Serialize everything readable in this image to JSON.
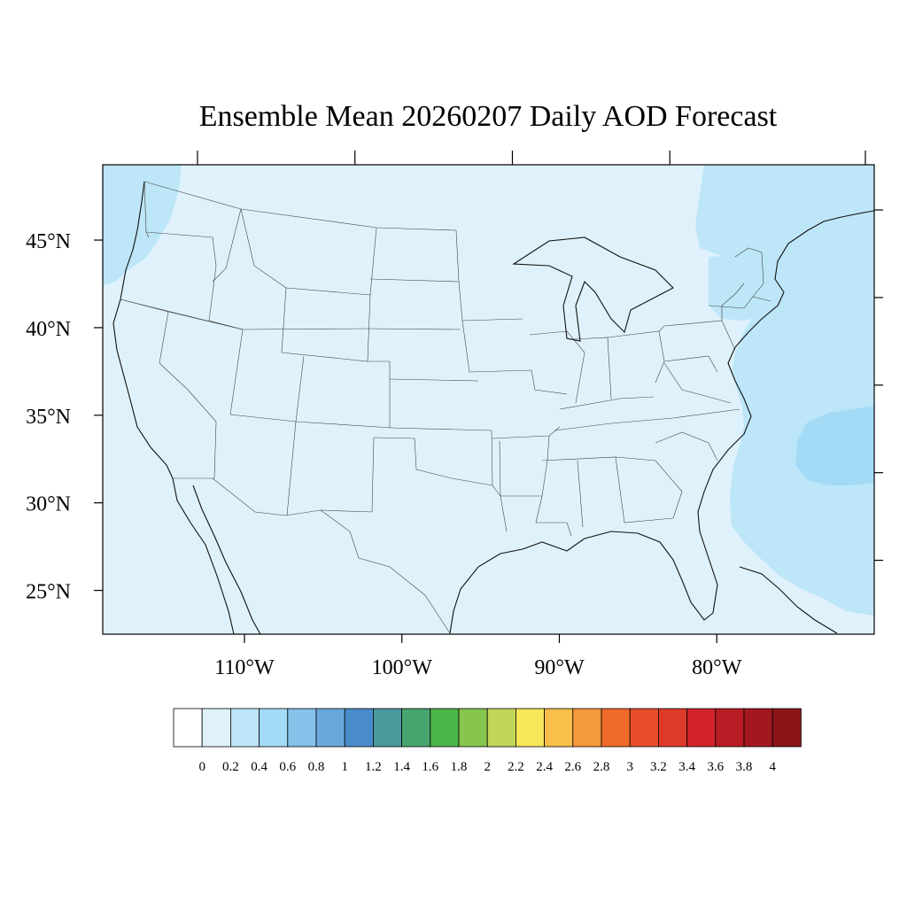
{
  "title": "Ensemble Mean 20260207 Daily AOD Forecast",
  "map": {
    "lon_range": [
      -119,
      -70
    ],
    "lat_range": [
      22.5,
      49.3
    ],
    "lat_ticks": [
      {
        "value": 45,
        "label": "45°N"
      },
      {
        "value": 40,
        "label": "40°N"
      },
      {
        "value": 35,
        "label": "35°N"
      },
      {
        "value": 30,
        "label": "30°N"
      },
      {
        "value": 25,
        "label": "25°N"
      }
    ],
    "lon_ticks": [
      {
        "value": -110,
        "label": "110°W"
      },
      {
        "value": -100,
        "label": "100°W"
      },
      {
        "value": -90,
        "label": "90°W"
      },
      {
        "value": -80,
        "label": "80°W"
      }
    ],
    "colors": {
      "background_field": "#dff2fb",
      "field_0_4": "#bde6f8",
      "field_0_6": "#a3dbf6",
      "frame": "#000000"
    }
  },
  "colorbar": {
    "labels": [
      "0",
      "0.2",
      "0.4",
      "0.6",
      "0.8",
      "1",
      "1.2",
      "1.4",
      "1.6",
      "1.8",
      "2",
      "2.2",
      "2.4",
      "2.6",
      "2.8",
      "3",
      "3.2",
      "3.4",
      "3.6",
      "3.8",
      "4"
    ],
    "colors": [
      "#ffffff",
      "#dff2fb",
      "#bde6f8",
      "#a3dbf6",
      "#85c1e9",
      "#6aa8dc",
      "#4a8ccb",
      "#4a9a9e",
      "#48a56f",
      "#4cb54a",
      "#86c64e",
      "#c2d659",
      "#f8e65a",
      "#f8c04a",
      "#f59a3e",
      "#f06a2b",
      "#e94e2c",
      "#de3a2a",
      "#d2232a",
      "#b91c24",
      "#a3181e",
      "#8c1519"
    ]
  }
}
